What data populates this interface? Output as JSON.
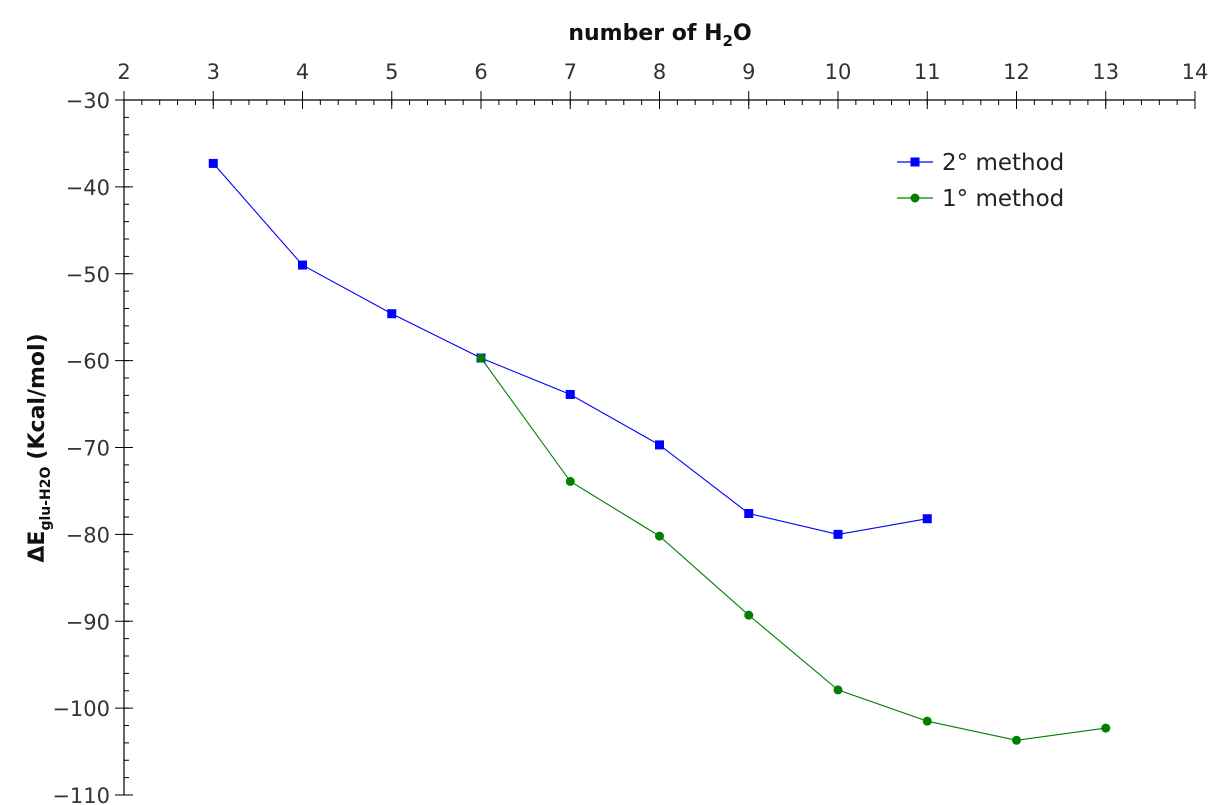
{
  "chart_data": {
    "type": "line",
    "xlabel": "number of H₂O",
    "ylabel": "ΔE",
    "ylabel_sub": "glu-H2O",
    "ylabel_units": "(Kcal/mol)",
    "xlim": [
      2,
      14
    ],
    "ylim": [
      -110,
      -30
    ],
    "x_ticks": [
      2,
      3,
      4,
      5,
      6,
      7,
      8,
      9,
      10,
      11,
      12,
      13,
      14
    ],
    "y_ticks": [
      -30,
      -40,
      -50,
      -60,
      -70,
      -80,
      -90,
      -100,
      -110
    ],
    "x_tick_labels": [
      "2",
      "3",
      "4",
      "5",
      "6",
      "7",
      "8",
      "9",
      "10",
      "11",
      "12",
      "13",
      "14"
    ],
    "y_tick_labels": [
      "−30",
      "−40",
      "−50",
      "−60",
      "−70",
      "−80",
      "−90",
      "−100",
      "−110"
    ],
    "x_axis_position": "top",
    "grid": false,
    "legend_position": "top-right",
    "series": [
      {
        "name": "2° method",
        "color": "#0000ff",
        "marker": "square",
        "x": [
          3,
          4,
          5,
          6,
          7,
          8,
          9,
          10,
          11
        ],
        "y": [
          -37.3,
          -49.0,
          -54.6,
          -59.7,
          -63.9,
          -69.7,
          -77.6,
          -80.0,
          -78.2
        ]
      },
      {
        "name": "1° method",
        "color": "#008000",
        "marker": "circle",
        "x": [
          6,
          7,
          8,
          9,
          10,
          11,
          12,
          13
        ],
        "y": [
          -59.7,
          -73.9,
          -80.2,
          -89.3,
          -97.9,
          -101.5,
          -103.7,
          -102.3
        ]
      }
    ]
  }
}
